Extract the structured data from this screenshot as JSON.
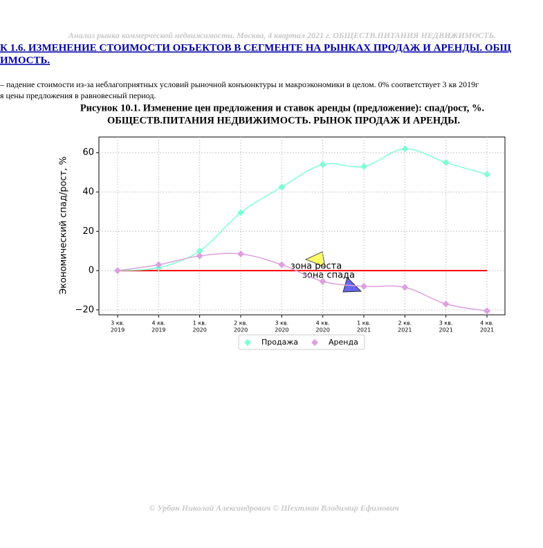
{
  "header": "Анализ рынка коммерческой недвижимости.  Москва, 4 квартал 2021 г.  ОБЩЕСТВ.ПИТАНИЯ НЕДВИЖИМОСТЬ.",
  "section_title": [
    "К 1.6. ИЗМЕНЕНИЕ СТОИМОСТИ ОБЪЕКТОВ В СЕГМЕНТЕ НА РЫНКАХ ПРОДАЖ И АРЕНДЫ. ОБЩ",
    "ИМОСТЬ."
  ],
  "paragraph": [
    "– падение стоимости из-за неблагоприятных условий рыночной конъюнктуры и макроэкономики в целом. 0% соответствует 3 кв 2019г",
    "я цены предложения в равновесный период."
  ],
  "chart_data": {
    "type": "line",
    "title": [
      "Рисунок 10.1. Изменение цен предложения и ставок аренды (предложение): спад/рост, %.",
      "ОБЩЕСТВ.ПИТАНИЯ НЕДВИЖИМОСТЬ. РЫНОК ПРОДАЖ И АРЕНДЫ."
    ],
    "y_label": "Экономический спад/рост, %",
    "categories": [
      [
        "3 кв.",
        "2019"
      ],
      [
        "4 кв.",
        "2019"
      ],
      [
        "1 кв.",
        "2020"
      ],
      [
        "2 кв.",
        "2020"
      ],
      [
        "3 кв.",
        "2020"
      ],
      [
        "4 кв.",
        "2020"
      ],
      [
        "1 кв.",
        "2021"
      ],
      [
        "2 кв.",
        "2021"
      ],
      [
        "3 кв.",
        "2021"
      ],
      [
        "4 кв.",
        "2021"
      ]
    ],
    "series": [
      {
        "name": "Продажа",
        "color": "#7fffd4",
        "values": [
          0,
          1.5,
          10,
          29.5,
          42.5,
          54,
          53,
          62,
          55,
          49
        ]
      },
      {
        "name": "Аренда",
        "color": "#dda0dd",
        "values": [
          0,
          3,
          7.5,
          8.5,
          3,
          -5.5,
          -8,
          -8.5,
          -17,
          -20.5
        ]
      }
    ],
    "reference_line": {
      "value": 0,
      "color": "#ff0000"
    },
    "annotations": [
      "зона роста",
      "зона спада"
    ],
    "ylim": [
      -22.5,
      68
    ],
    "yticks": [
      {
        "value": -20,
        "label": "−20"
      },
      0,
      20,
      40,
      60
    ],
    "grid": true
  },
  "footer": "© Урбан Николай Александрович   © Шехтман Владимир Ефимович"
}
